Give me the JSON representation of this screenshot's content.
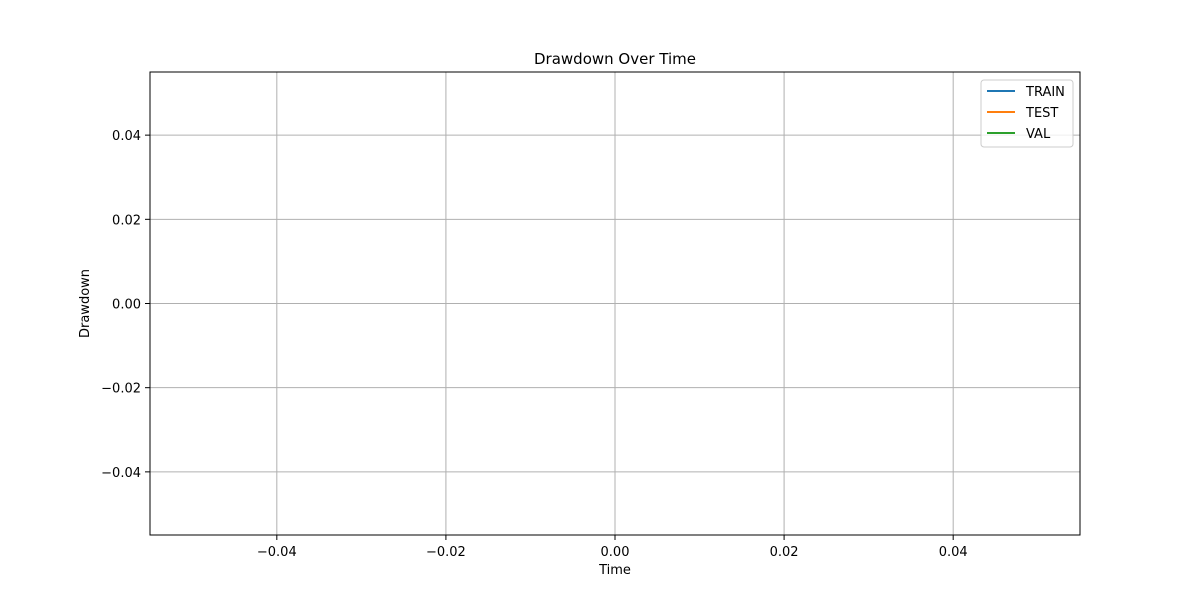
{
  "chart_data": {
    "type": "line",
    "title": "Drawdown Over Time",
    "xlabel": "Time",
    "ylabel": "Drawdown",
    "xlim": [
      -0.055,
      0.055
    ],
    "ylim": [
      -0.055,
      0.055
    ],
    "x_ticks": [
      -0.04,
      -0.02,
      0.0,
      0.02,
      0.04
    ],
    "x_tick_labels": [
      "−0.04",
      "−0.02",
      "0.00",
      "0.02",
      "0.04"
    ],
    "y_ticks": [
      0.04,
      0.02,
      0.0,
      -0.02,
      -0.04
    ],
    "y_tick_labels": [
      "0.04",
      "0.02",
      "0.00",
      "−0.02",
      "−0.04"
    ],
    "grid": true,
    "legend_position": "top-right",
    "series": [
      {
        "name": "TRAIN",
        "color": "#1f77b4",
        "x": [],
        "y": []
      },
      {
        "name": "TEST",
        "color": "#ff7f0e",
        "x": [],
        "y": []
      },
      {
        "name": "VAL",
        "color": "#2ca02c",
        "x": [],
        "y": []
      }
    ]
  }
}
